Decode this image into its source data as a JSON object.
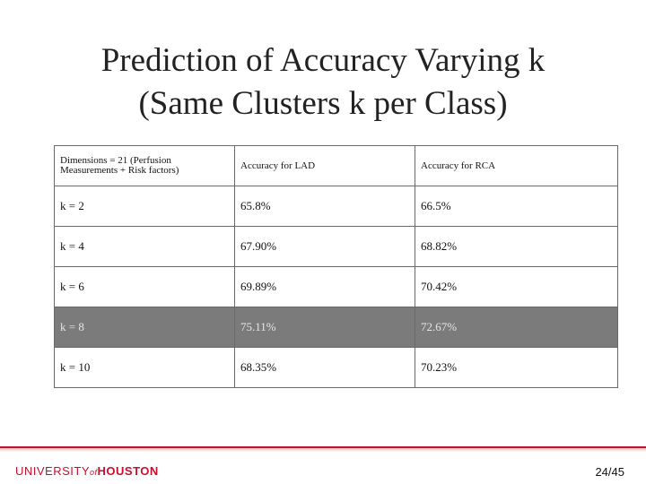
{
  "title": {
    "line1": "Prediction of Accuracy Varying k",
    "line2": "(Same Clusters k per Class)"
  },
  "table": {
    "header": {
      "col1": "Dimensions = 21 (Perfusion Measurements + Risk factors)",
      "col2": "Accuracy for LAD",
      "col3": "Accuracy for RCA"
    },
    "rows": [
      {
        "k": "k = 2",
        "lad": "65.8%",
        "rca": "66.5%"
      },
      {
        "k": "k = 4",
        "lad": "67.90%",
        "rca": "68.82%"
      },
      {
        "k": "k = 6",
        "lad": "69.89%",
        "rca": "70.42%"
      },
      {
        "k": "k = 8",
        "lad": "75.11%",
        "rca": "72.67%"
      },
      {
        "k": "k = 10",
        "lad": "68.35%",
        "rca": "70.23%"
      }
    ],
    "highlight_color": "#7b7b7b"
  },
  "footer": {
    "logo_university": "UNIVERSITY",
    "logo_of": "of",
    "logo_houston": "HOUSTON",
    "page_number": "24/45",
    "brand_color": "#c8102e"
  }
}
